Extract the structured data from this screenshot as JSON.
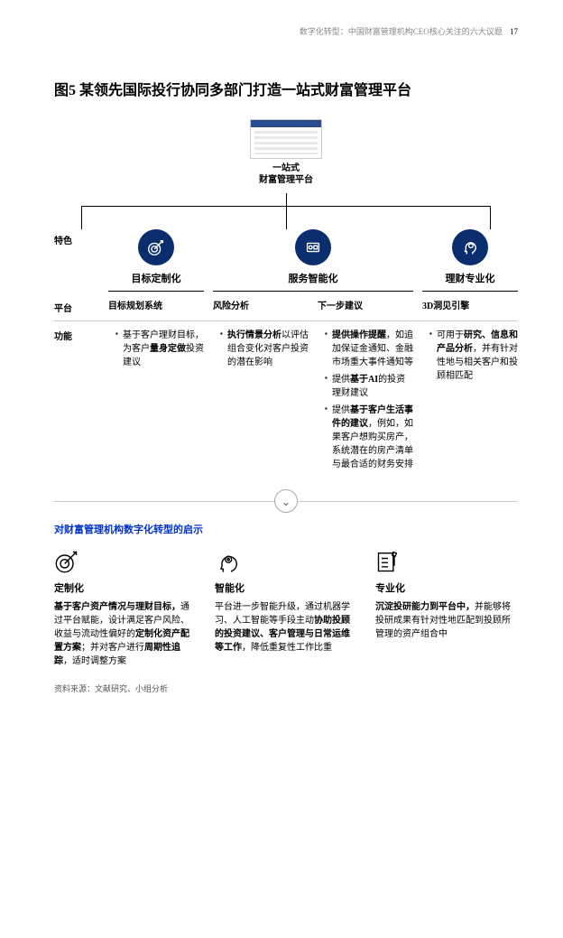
{
  "header": {
    "running": "数字化转型：中国财富管理机构CEO核心关注的六大议题",
    "page": "17"
  },
  "figure": {
    "title": "图5 某领先国际投行协同多部门打造一站式财富管理平台",
    "hub_line1": "一站式",
    "hub_line2": "财富管理平台",
    "row_labels": {
      "feature": "特色",
      "platform": "平台",
      "function": "功能"
    },
    "cols": [
      {
        "icon": "target",
        "head": "目标定制化",
        "platform": "目标规划系统",
        "functions": [
          "基于客户理财目标，为客户<b>量身定做</b>投资建议"
        ]
      },
      {
        "icon": "chip",
        "head": "服务智能化",
        "platform": "风险分析",
        "functions": [
          "<b>执行情景分析</b>以评估组合变化对客户投资的潜在影响"
        ]
      },
      {
        "icon": "",
        "head": "",
        "platform": "下一步建议",
        "functions": [
          "<b>提供操作提醒</b>，如追加保证金通知、金融市场重大事件通知等",
          "提供<b>基于AI</b>的投资理财建议",
          "提供<b>基于客户生活事件的建议</b>，例如，如果客户想购买房产，系统潜在的房产清单与最合适的财务安排"
        ]
      },
      {
        "icon": "head",
        "head": "理财专业化",
        "platform": "3D洞见引擎",
        "functions": [
          "可用于<b>研究、信息和产品分析</b>，并有针对性地与相关客户和投顾相匹配"
        ]
      }
    ]
  },
  "divider_glyph": "⌄",
  "subhead": "对财富管理机构数字化转型的启示",
  "insights": [
    {
      "icon": "target-outline",
      "title": "定制化",
      "body": "<b>基于客户资产情况与理财目标，</b>通过平台赋能，设计满足客户风险、收益与流动性偏好的<b>定制化资产配置方案</b>；并对客户进行<b>周期性追踪</b>，适时调整方案"
    },
    {
      "icon": "head-outline",
      "title": "智能化",
      "body": "平台进一步智能升级，通过机器学习、人工智能等手段主动<b>协助投顾的投资建议、客户管理与日常运维等工作</b>，降低重复性工作比重"
    },
    {
      "icon": "checklist",
      "title": "专业化",
      "body": "<b>沉淀投研能力到平台中，</b>并能够将投研成果有针对性地匹配到投顾所管理的资产组合中"
    }
  ],
  "source": "资料来源：文献研究、小组分析",
  "colors": {
    "navy": "#0a2d6e",
    "link_blue": "#0033cc",
    "grey": "#888888",
    "rule": "#cccccc"
  }
}
